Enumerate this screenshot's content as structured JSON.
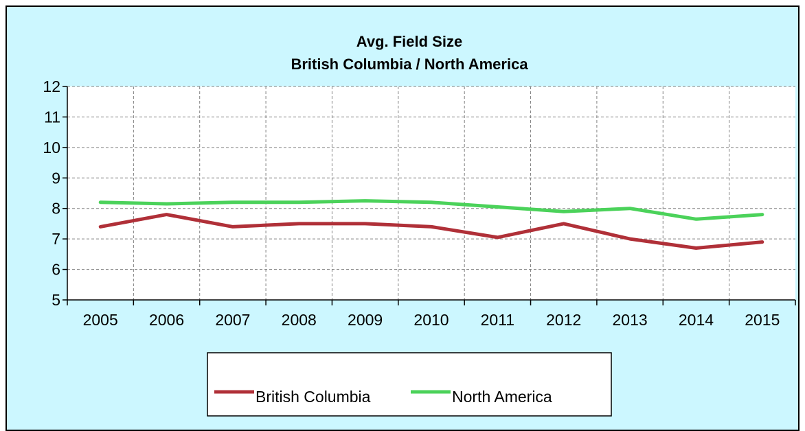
{
  "chart_data": {
    "type": "line",
    "title": "Avg. Field Size",
    "subtitle": "British Columbia / North America",
    "xlabel": "",
    "ylabel": "",
    "x": [
      "2005",
      "2006",
      "2007",
      "2008",
      "2009",
      "2010",
      "2011",
      "2012",
      "2013",
      "2014",
      "2015"
    ],
    "ylim": [
      5,
      12
    ],
    "yticks": [
      5,
      6,
      7,
      8,
      9,
      10,
      11,
      12
    ],
    "grid": true,
    "legend_position": "bottom",
    "series": [
      {
        "name": "British Columbia",
        "color": "#b03038",
        "values": [
          7.4,
          7.8,
          7.4,
          7.5,
          7.5,
          7.4,
          7.05,
          7.5,
          7.0,
          6.7,
          6.9
        ]
      },
      {
        "name": "North America",
        "color": "#4bd25a",
        "values": [
          8.2,
          8.15,
          8.2,
          8.2,
          8.25,
          8.2,
          8.05,
          7.9,
          8.0,
          7.65,
          7.8
        ]
      }
    ]
  },
  "colors": {
    "background": "#ccf7ff",
    "plot_background": "#ffffff",
    "grid": "#808080"
  }
}
